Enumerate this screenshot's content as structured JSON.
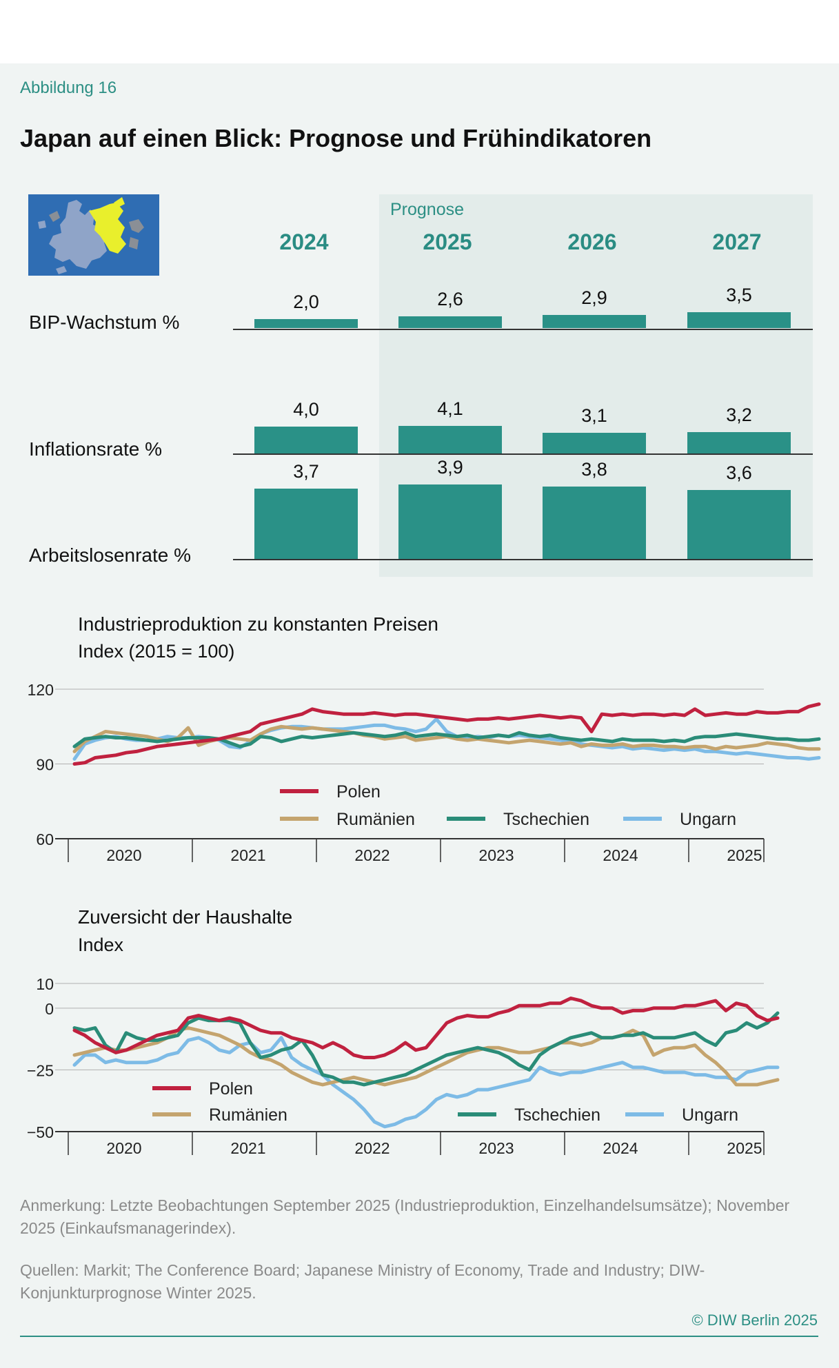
{
  "figure_label": "Abbildung 16",
  "title": "Japan auf einen Blick: Prognose und Frühindikatoren",
  "forecast_label": "Prognose",
  "years": [
    "2024",
    "2025",
    "2026",
    "2027"
  ],
  "indicators": [
    {
      "label": "BIP-Wachstum %",
      "values": [
        "2,0",
        "2,6",
        "2,9",
        "3,5"
      ],
      "numbers": [
        2.0,
        2.6,
        2.9,
        3.5
      ]
    },
    {
      "label": "Inflationsrate %",
      "values": [
        "4,0",
        "4,1",
        "3,1",
        "3,2"
      ],
      "numbers": [
        4.0,
        4.1,
        3.1,
        3.2
      ]
    },
    {
      "label": "Arbeitslosenrate %",
      "values": [
        "3,7",
        "3,9",
        "3,8",
        "3,6"
      ],
      "numbers": [
        3.7,
        3.9,
        3.8,
        3.6
      ]
    }
  ],
  "colors": {
    "bar": "#2a9187",
    "accent": "#2c8f84",
    "Polen": "#c0213f",
    "Rumänien": "#c4a46e",
    "Tschechien": "#2a8c78",
    "Ungarn": "#7dbbe6"
  },
  "chart_data": [
    {
      "type": "line",
      "title": "Industrieproduktion zu konstanten Preisen",
      "ylabel": "Index (2015 = 100)",
      "ylim": [
        60,
        120
      ],
      "yticks": [
        "120",
        "90",
        "60"
      ],
      "ytick_values": [
        120,
        90,
        60
      ],
      "xticks": [
        "2020",
        "2021",
        "2022",
        "2023",
        "2024",
        "2025"
      ],
      "x_start": 2020.0,
      "x_step": 0.08333,
      "series": [
        {
          "name": "Polen",
          "values": [
            90,
            90.5,
            92.5,
            93,
            93.5,
            94.5,
            95,
            96,
            97,
            97.5,
            98,
            98.5,
            99,
            99.5,
            100,
            101,
            102,
            103,
            106,
            107,
            108,
            109,
            110,
            112,
            111,
            110.5,
            110,
            110,
            110,
            110.5,
            110,
            109.5,
            110,
            110,
            109.5,
            109,
            108.5,
            108,
            107.5,
            108,
            108,
            108.5,
            108,
            108.5,
            109,
            109.5,
            109,
            108.5,
            109,
            108.5,
            103,
            110,
            109.5,
            110,
            109.5,
            110,
            110,
            109.5,
            110,
            109.5,
            112,
            109.5,
            110,
            110.5,
            110,
            110,
            111,
            110.5,
            110.5,
            111,
            111,
            113,
            114
          ]
        },
        {
          "name": "Rumänien",
          "values": [
            95,
            99,
            101,
            103,
            102.5,
            102,
            101.5,
            101,
            100,
            99,
            100.5,
            104.5,
            97.5,
            99,
            100,
            100.5,
            100,
            99.5,
            102,
            104,
            105,
            104.5,
            104,
            104.5,
            104,
            103.5,
            103,
            102.5,
            101.5,
            101,
            100,
            100.5,
            101,
            99.5,
            100,
            100.5,
            101,
            100,
            99.5,
            100,
            99.5,
            99,
            98.5,
            99,
            99.5,
            99,
            98.5,
            98,
            98.5,
            97,
            98,
            97.5,
            97.5,
            98,
            97,
            97.5,
            97.5,
            97,
            97,
            96.5,
            97,
            97,
            96,
            97,
            96.5,
            97,
            97.5,
            98.5,
            98,
            97.5,
            96.5,
            96,
            96
          ]
        },
        {
          "name": "Tschechien",
          "values": [
            97,
            100,
            100.5,
            101,
            100.5,
            100.5,
            100,
            99.5,
            99,
            99.5,
            100,
            100.5,
            100.5,
            100.5,
            100,
            98.5,
            97,
            98,
            101,
            100.5,
            99,
            100,
            101,
            100.5,
            101,
            101.5,
            102,
            102.5,
            102,
            101.5,
            101,
            101.5,
            102.5,
            101,
            101.5,
            102,
            101.5,
            101,
            101.5,
            100.5,
            101,
            101.5,
            101,
            102.5,
            101.5,
            101,
            101.5,
            100.5,
            100,
            99.5,
            100,
            99.5,
            99,
            100,
            99.5,
            99.5,
            99.5,
            99,
            99.5,
            99,
            100.5,
            101,
            101,
            101.5,
            102,
            101.5,
            101,
            100.5,
            100,
            100,
            99.5,
            99.5,
            100
          ]
        },
        {
          "name": "Ungarn",
          "values": [
            92,
            98,
            99.5,
            100.5,
            101,
            100,
            99.5,
            99.5,
            100,
            101,
            100.5,
            100.5,
            101,
            100.5,
            99.5,
            97,
            96.5,
            99,
            102,
            103.5,
            104.5,
            105,
            105,
            104.5,
            104,
            104,
            104,
            104.5,
            105,
            105.5,
            105.5,
            104.5,
            104,
            103,
            104,
            108,
            103,
            101,
            100.5,
            101,
            100.5,
            101.5,
            101,
            101.5,
            101,
            100.5,
            100,
            99.5,
            99,
            98,
            97.5,
            97,
            96.5,
            97,
            96,
            96.5,
            96,
            95.5,
            96,
            95.5,
            96,
            95,
            95,
            94.5,
            94,
            94.5,
            94,
            93.5,
            93,
            92.5,
            92.5,
            92,
            92.5
          ]
        }
      ]
    },
    {
      "type": "line",
      "title": "Zuversicht der Haushalte",
      "ylabel": "Index",
      "ylim": [
        -50,
        10
      ],
      "yticks": [
        "10",
        "0",
        "−25",
        "−50"
      ],
      "ytick_values": [
        10,
        0,
        -25,
        -50
      ],
      "xticks": [
        "2020",
        "2021",
        "2022",
        "2023",
        "2024",
        "2025"
      ],
      "x_start": 2020.0,
      "x_step": 0.08333,
      "series": [
        {
          "name": "Polen",
          "values": [
            -9,
            -11,
            -14,
            -16,
            -18,
            -17,
            -15,
            -13,
            -11,
            -10,
            -9,
            -4,
            -3,
            -4,
            -5,
            -4,
            -5,
            -7,
            -9,
            -10,
            -10,
            -12,
            -13,
            -14,
            -16,
            -14,
            -16,
            -19,
            -20,
            -20,
            -19,
            -17,
            -14,
            -17,
            -16,
            -11,
            -6,
            -4,
            -3,
            -3.5,
            -3.5,
            -2,
            -1,
            1,
            1,
            1,
            2,
            2,
            4,
            3,
            1,
            0,
            0,
            -2,
            -1,
            -1,
            0,
            0,
            0,
            1,
            1,
            2,
            3,
            -1,
            2,
            1,
            -3,
            -5,
            -4
          ]
        },
        {
          "name": "Rumänien",
          "values": [
            -19,
            -18,
            -17,
            -16,
            -17,
            -17,
            -16,
            -15,
            -14,
            -12,
            -9,
            -8,
            -9,
            -10,
            -11,
            -13,
            -15,
            -18,
            -20,
            -21,
            -23,
            -26,
            -28,
            -30,
            -31,
            -30,
            -29,
            -28,
            -29,
            -30,
            -31,
            -30,
            -29,
            -28,
            -26,
            -24,
            -22,
            -20,
            -18,
            -17,
            -16,
            -16,
            -17,
            -18,
            -18,
            -17,
            -16,
            -14,
            -14,
            -15,
            -14,
            -12,
            -12,
            -11,
            -9,
            -11,
            -19,
            -17,
            -16,
            -16,
            -15,
            -19,
            -22,
            -26,
            -31,
            -31,
            -31,
            -30,
            -29
          ]
        },
        {
          "name": "Tschechien",
          "values": [
            -8,
            -9,
            -8,
            -15,
            -18,
            -10,
            -12,
            -13,
            -13,
            -12,
            -11,
            -6,
            -4,
            -5,
            -5,
            -5,
            -6,
            -14,
            -20,
            -19,
            -17,
            -16,
            -13,
            -19,
            -27,
            -28,
            -30,
            -30,
            -31,
            -30,
            -29,
            -28,
            -27,
            -25,
            -23,
            -21,
            -19,
            -18,
            -17,
            -16,
            -17,
            -18,
            -20,
            -23,
            -25,
            -19,
            -16,
            -14,
            -12,
            -11,
            -10,
            -12,
            -12,
            -11,
            -11,
            -10,
            -12,
            -12,
            -12,
            -11,
            -10,
            -13,
            -15,
            -10,
            -9,
            -6,
            -8,
            -6,
            -2
          ]
        },
        {
          "name": "Ungarn",
          "values": [
            -23,
            -19,
            -19,
            -22,
            -21,
            -22,
            -22,
            -22,
            -21,
            -19,
            -18,
            -13,
            -12,
            -14,
            -17,
            -18,
            -15,
            -14,
            -18,
            -17,
            -12,
            -20,
            -23,
            -25,
            -27,
            -31,
            -34,
            -37,
            -41,
            -46,
            -48,
            -47,
            -45,
            -44,
            -41,
            -37,
            -35,
            -36,
            -35,
            -33,
            -33,
            -32,
            -31,
            -30,
            -29,
            -24,
            -26,
            -27,
            -26,
            -26,
            -25,
            -24,
            -23,
            -22,
            -24,
            -24,
            -25,
            -26,
            -26,
            -26,
            -27,
            -27,
            -28,
            -28,
            -29,
            -26,
            -25,
            -24,
            -24
          ]
        }
      ]
    }
  ],
  "legend": [
    "Polen",
    "Rumänien",
    "Tschechien",
    "Ungarn"
  ],
  "note": "Anmerkung: Letzte Beobachtungen September 2025 (Industrieproduktion, Einzelhandelsumsätze); November 2025 (Einkaufsmanagerindex).",
  "sources": "Quellen: Markit; The Conference Board; Japanese Ministry of Economy, Trade and Industry; DIW-Konjunkturprognose Winter 2025.",
  "copyright": "© DIW Berlin 2025"
}
